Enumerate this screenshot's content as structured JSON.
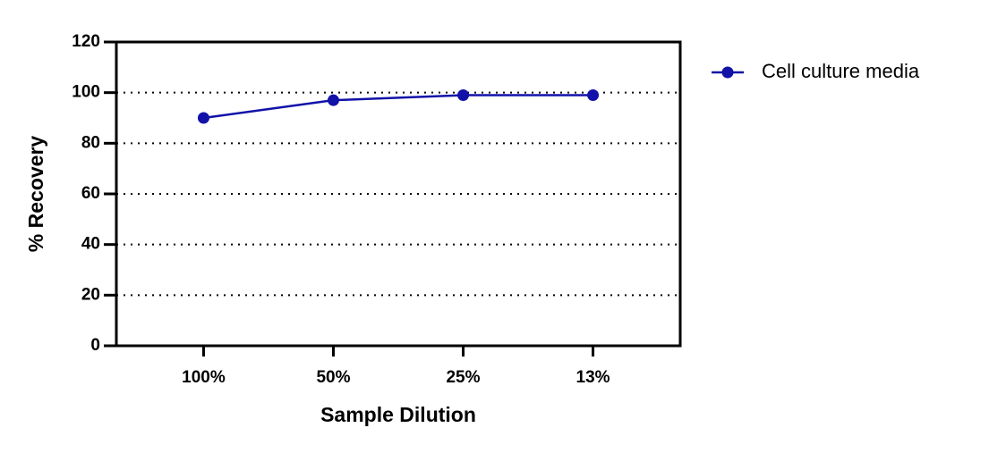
{
  "chart_data": {
    "type": "line",
    "x_label": "Sample Dilution",
    "y_label": "% Recovery",
    "categories": [
      "100%",
      "50%",
      "25%",
      "13%"
    ],
    "series": [
      {
        "name": "Cell culture media",
        "color": "#1212a8",
        "values": [
          90,
          97,
          99,
          99
        ]
      }
    ],
    "ylim": [
      0,
      120
    ],
    "yticks": [
      0,
      20,
      40,
      60,
      80,
      100,
      120
    ],
    "grid": true,
    "legend": "right"
  }
}
